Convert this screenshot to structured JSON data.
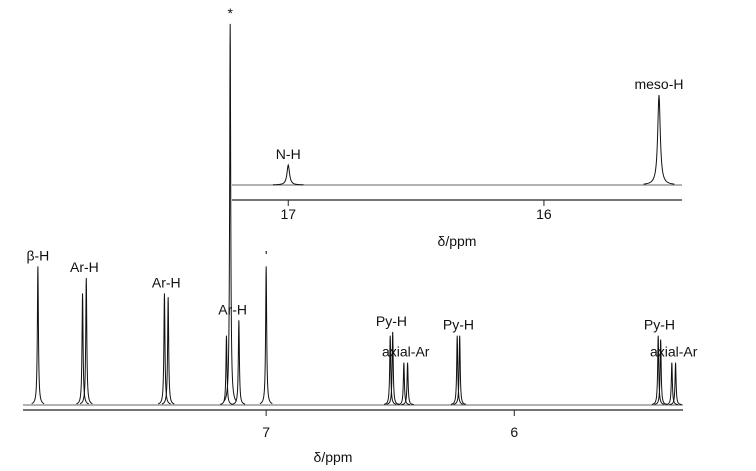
{
  "chart_data": [
    {
      "type": "spectrum",
      "xlabel": "δ/ppm",
      "xlim": [
        7.98,
        5.32
      ],
      "xticks": [
        7,
        6
      ],
      "ylim": [
        0,
        100
      ],
      "groups": [
        {
          "label": "β-H",
          "peaks": [
            {
              "ppm": 7.92,
              "intensity": 36
            }
          ]
        },
        {
          "label": "Ar-H",
          "peaks": [
            {
              "ppm": 7.74,
              "intensity": 29
            },
            {
              "ppm": 7.725,
              "intensity": 33
            }
          ]
        },
        {
          "label": "Ar-H",
          "peaks": [
            {
              "ppm": 7.41,
              "intensity": 29
            },
            {
              "ppm": 7.395,
              "intensity": 28
            }
          ]
        },
        {
          "label": "*",
          "peaks": [
            {
              "ppm": 7.145,
              "intensity": 99
            }
          ]
        },
        {
          "label": "Ar-H",
          "peaks": [
            {
              "ppm": 7.16,
              "intensity": 18
            },
            {
              "ppm": 7.11,
              "intensity": 22
            }
          ]
        },
        {
          "label": "'",
          "peaks": [
            {
              "ppm": 7.0,
              "intensity": 36
            }
          ]
        },
        {
          "label": "Py-H",
          "peaks": [
            {
              "ppm": 6.5,
              "intensity": 18
            },
            {
              "ppm": 6.49,
              "intensity": 19
            }
          ]
        },
        {
          "label": "axial-Ar",
          "peaks": [
            {
              "ppm": 6.445,
              "intensity": 11
            },
            {
              "ppm": 6.43,
              "intensity": 11
            }
          ]
        },
        {
          "label": "Py-H",
          "peaks": [
            {
              "ppm": 6.23,
              "intensity": 18
            },
            {
              "ppm": 6.22,
              "intensity": 18
            }
          ]
        },
        {
          "label": "Py-H",
          "peaks": [
            {
              "ppm": 5.42,
              "intensity": 18
            },
            {
              "ppm": 5.41,
              "intensity": 17
            }
          ]
        },
        {
          "label": "axial-Ar",
          "peaks": [
            {
              "ppm": 5.365,
              "intensity": 11
            },
            {
              "ppm": 5.35,
              "intensity": 11
            }
          ]
        }
      ]
    },
    {
      "type": "spectrum",
      "xlabel": "δ/ppm",
      "xlim": [
        17.22,
        15.46
      ],
      "xticks": [
        17,
        16
      ],
      "ylim": [
        0,
        100
      ],
      "groups": [
        {
          "label": "N-H",
          "peaks": [
            {
              "ppm": 17.0,
              "intensity": 20
            }
          ]
        },
        {
          "label": "meso-H",
          "peaks": [
            {
              "ppm": 15.55,
              "intensity": 90
            }
          ]
        }
      ]
    }
  ]
}
